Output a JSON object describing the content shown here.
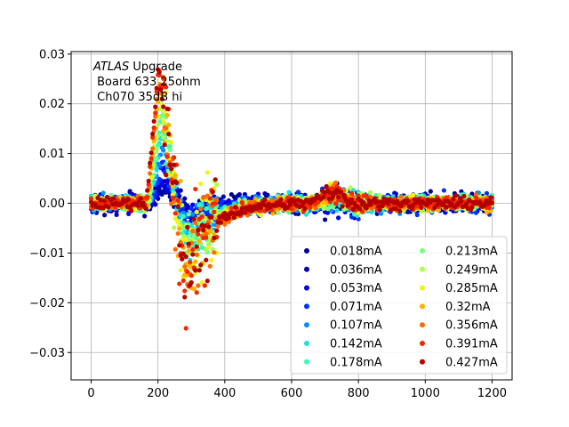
{
  "chart_data": {
    "type": "scatter",
    "title": "",
    "xlabel": "",
    "ylabel": "",
    "xlim": [
      -60,
      1260
    ],
    "ylim": [
      -0.0355,
      0.0305
    ],
    "x_ticks": [
      0,
      200,
      400,
      600,
      800,
      1000,
      1200
    ],
    "x_tick_labels": [
      "0",
      "200",
      "400",
      "600",
      "800",
      "1000",
      "1200"
    ],
    "y_ticks": [
      0.03,
      0.02,
      0.01,
      0.0,
      -0.01,
      -0.02,
      -0.03
    ],
    "y_tick_labels": [
      "0.03",
      "0.02",
      "0.01",
      "0.00",
      "−0.01",
      "−0.02",
      "−0.03"
    ],
    "grid": true,
    "legend_placement": "lower-right",
    "legend_columns": 2,
    "annotation": {
      "line1_italic": "ATLAS",
      "line1_rest": " Upgrade",
      "line2": " Board 633 25ohm",
      "line3": " Ch070 35dB hi"
    },
    "series": [
      {
        "name": "0.018mA",
        "color": "#00008f",
        "amplitude": 0.0025
      },
      {
        "name": "0.036mA",
        "color": "#0000b8",
        "amplitude": 0.004
      },
      {
        "name": "0.053mA",
        "color": "#0000ef",
        "amplitude": 0.0055
      },
      {
        "name": "0.071mA",
        "color": "#0030ff",
        "amplitude": 0.0075
      },
      {
        "name": "0.107mA",
        "color": "#0090ff",
        "amplitude": 0.011
      },
      {
        "name": "0.142mA",
        "color": "#17e1e1",
        "amplitude": 0.014
      },
      {
        "name": "0.178mA",
        "color": "#36ffb0",
        "amplitude": 0.017
      },
      {
        "name": "0.213mA",
        "color": "#7bff7b",
        "amplitude": 0.019
      },
      {
        "name": "0.249mA",
        "color": "#b0ff47",
        "amplitude": 0.021
      },
      {
        "name": "0.285mA",
        "color": "#f1f417",
        "amplitude": 0.023
      },
      {
        "name": "0.32mA",
        "color": "#ffb000",
        "amplitude": 0.0245
      },
      {
        "name": "0.356mA",
        "color": "#ff6a00",
        "amplitude": 0.026
      },
      {
        "name": "0.391mA",
        "color": "#f42800",
        "amplitude": 0.027
      },
      {
        "name": "0.427mA",
        "color": "#b20000",
        "amplitude": 0.0275
      }
    ]
  }
}
